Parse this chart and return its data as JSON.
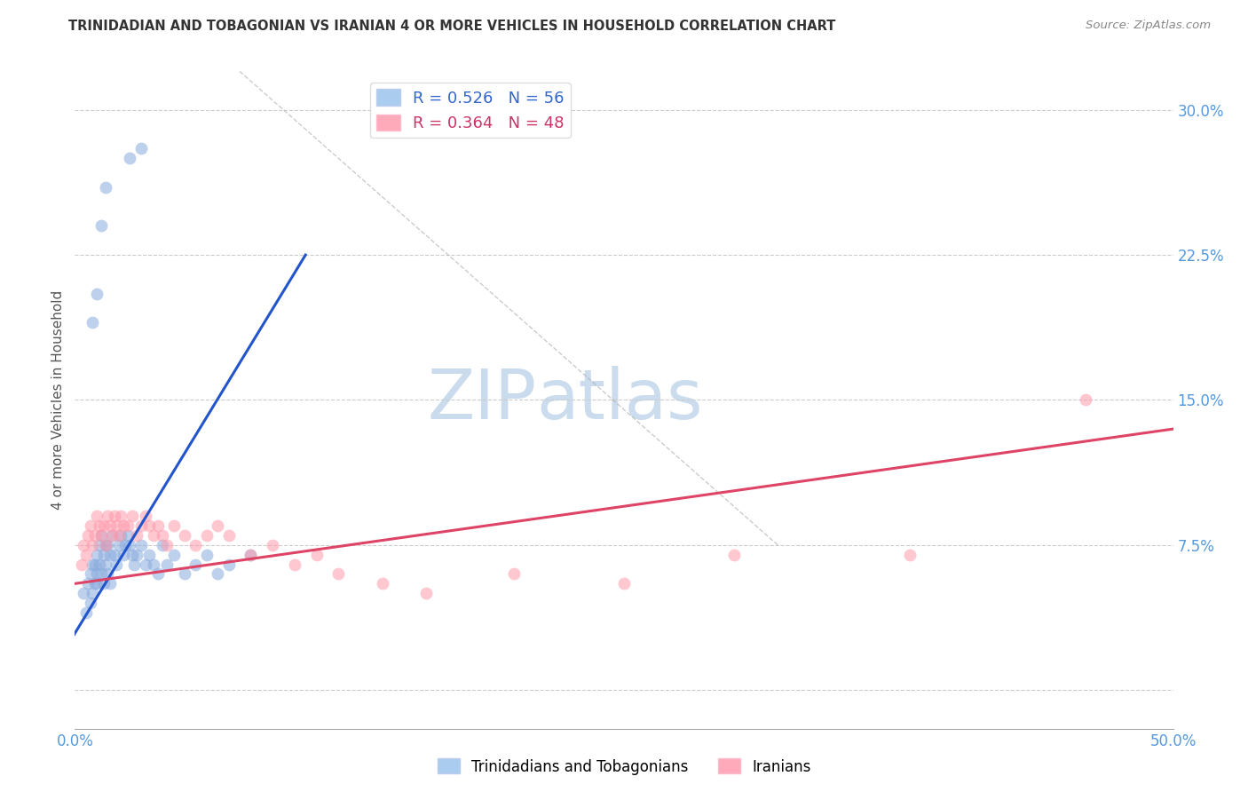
{
  "title": "TRINIDADIAN AND TOBAGONIAN VS IRANIAN 4 OR MORE VEHICLES IN HOUSEHOLD CORRELATION CHART",
  "source": "Source: ZipAtlas.com",
  "ylabel": "4 or more Vehicles in Household",
  "xmin": 0.0,
  "xmax": 0.5,
  "ymin": -0.02,
  "ymax": 0.32,
  "xticks": [
    0.0,
    0.05,
    0.1,
    0.15,
    0.2,
    0.25,
    0.3,
    0.35,
    0.4,
    0.45,
    0.5
  ],
  "xticklabels": [
    "0.0%",
    "",
    "",
    "",
    "",
    "",
    "",
    "",
    "",
    "",
    "50.0%"
  ],
  "yticks": [
    0.0,
    0.075,
    0.15,
    0.225,
    0.3
  ],
  "yticklabels": [
    "",
    "7.5%",
    "15.0%",
    "22.5%",
    "30.0%"
  ],
  "legend_label1": "R = 0.526   N = 56",
  "legend_label2": "R = 0.364   N = 48",
  "legend_color1": "#aaccee",
  "legend_color2": "#ffaabb",
  "scatter_color1": "#88aadd",
  "scatter_color2": "#ff99aa",
  "line_color1": "#2255cc",
  "line_color2": "#dd4466",
  "watermark_zip": "ZIP",
  "watermark_atlas": "atlas",
  "blue_scatter_x": [
    0.004,
    0.005,
    0.006,
    0.007,
    0.007,
    0.008,
    0.008,
    0.009,
    0.009,
    0.01,
    0.01,
    0.01,
    0.011,
    0.011,
    0.012,
    0.012,
    0.013,
    0.013,
    0.014,
    0.014,
    0.015,
    0.015,
    0.016,
    0.016,
    0.017,
    0.018,
    0.019,
    0.02,
    0.021,
    0.022,
    0.023,
    0.024,
    0.025,
    0.026,
    0.027,
    0.028,
    0.03,
    0.032,
    0.034,
    0.036,
    0.038,
    0.04,
    0.042,
    0.045,
    0.05,
    0.055,
    0.06,
    0.065,
    0.07,
    0.08,
    0.008,
    0.01,
    0.012,
    0.014,
    0.025,
    0.03
  ],
  "blue_scatter_y": [
    0.05,
    0.04,
    0.055,
    0.06,
    0.045,
    0.065,
    0.05,
    0.055,
    0.065,
    0.06,
    0.07,
    0.055,
    0.075,
    0.065,
    0.08,
    0.06,
    0.07,
    0.055,
    0.075,
    0.065,
    0.06,
    0.075,
    0.07,
    0.055,
    0.08,
    0.07,
    0.065,
    0.075,
    0.08,
    0.07,
    0.075,
    0.08,
    0.075,
    0.07,
    0.065,
    0.07,
    0.075,
    0.065,
    0.07,
    0.065,
    0.06,
    0.075,
    0.065,
    0.07,
    0.06,
    0.065,
    0.07,
    0.06,
    0.065,
    0.07,
    0.19,
    0.205,
    0.24,
    0.26,
    0.275,
    0.28
  ],
  "pink_scatter_x": [
    0.003,
    0.004,
    0.005,
    0.006,
    0.007,
    0.008,
    0.009,
    0.01,
    0.011,
    0.012,
    0.013,
    0.014,
    0.015,
    0.016,
    0.017,
    0.018,
    0.019,
    0.02,
    0.021,
    0.022,
    0.024,
    0.026,
    0.028,
    0.03,
    0.032,
    0.034,
    0.036,
    0.038,
    0.04,
    0.042,
    0.045,
    0.05,
    0.055,
    0.06,
    0.065,
    0.07,
    0.08,
    0.09,
    0.1,
    0.11,
    0.12,
    0.14,
    0.16,
    0.2,
    0.25,
    0.3,
    0.38,
    0.46
  ],
  "pink_scatter_y": [
    0.065,
    0.075,
    0.07,
    0.08,
    0.085,
    0.075,
    0.08,
    0.09,
    0.085,
    0.08,
    0.085,
    0.075,
    0.09,
    0.085,
    0.08,
    0.09,
    0.085,
    0.08,
    0.09,
    0.085,
    0.085,
    0.09,
    0.08,
    0.085,
    0.09,
    0.085,
    0.08,
    0.085,
    0.08,
    0.075,
    0.085,
    0.08,
    0.075,
    0.08,
    0.085,
    0.08,
    0.07,
    0.075,
    0.065,
    0.07,
    0.06,
    0.055,
    0.05,
    0.06,
    0.055,
    0.07,
    0.07,
    0.15
  ],
  "blue_line_x": [
    -0.005,
    0.105
  ],
  "blue_line_y": [
    0.02,
    0.225
  ],
  "pink_line_x": [
    0.0,
    0.5
  ],
  "pink_line_y": [
    0.055,
    0.135
  ],
  "diag_line_x": [
    0.075,
    0.32
  ],
  "diag_line_y": [
    0.32,
    0.075
  ],
  "scatter_size": 100,
  "scatter_alpha": 0.55,
  "line_width": 2.2
}
